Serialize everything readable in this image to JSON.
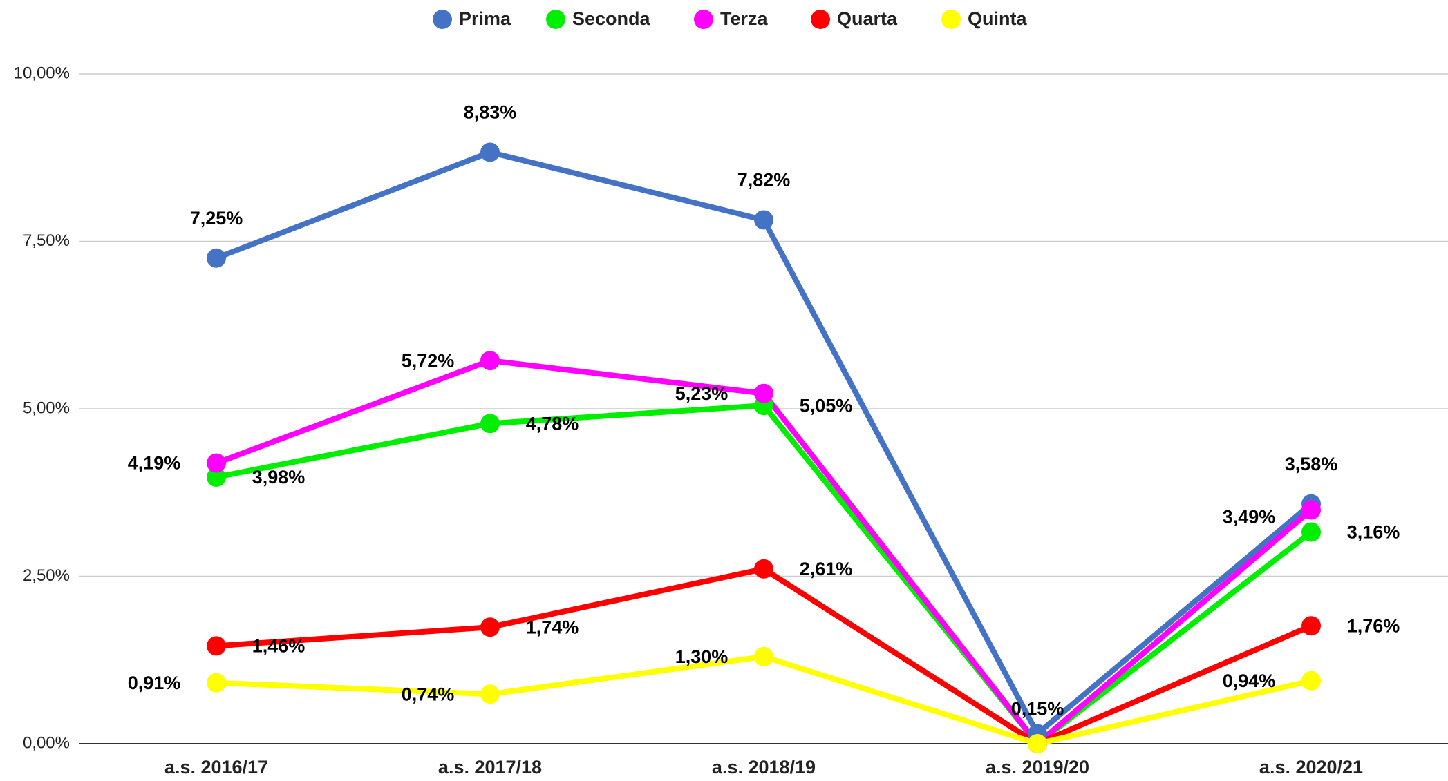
{
  "chart_data": {
    "type": "line",
    "categories": [
      "a.s. 2016/17",
      "a.s. 2017/18",
      "a.s. 2018/19",
      "a.s. 2019/20",
      "a.s. 2020/21"
    ],
    "series": [
      {
        "name": "Prima",
        "color": "#4472c4",
        "values": [
          7.25,
          8.83,
          7.82,
          0.15,
          3.58
        ],
        "value_labels": [
          "7,25%",
          "8,83%",
          "7,82%",
          "0,15%",
          "3,58%"
        ]
      },
      {
        "name": "Seconda",
        "color": "#00ee00",
        "values": [
          3.98,
          4.78,
          5.05,
          0,
          3.16
        ],
        "value_labels": [
          "3,98%",
          "4,78%",
          "5,05%",
          null,
          "3,16%"
        ]
      },
      {
        "name": "Terza",
        "color": "#ff00ff",
        "values": [
          4.19,
          5.72,
          5.23,
          0,
          3.49
        ],
        "value_labels": [
          "4,19%",
          "5,72%",
          "5,23%",
          null,
          "3,49%"
        ]
      },
      {
        "name": "Quarta",
        "color": "#ff0000",
        "values": [
          1.46,
          1.74,
          2.61,
          0,
          1.76
        ],
        "value_labels": [
          "1,46%",
          "1,74%",
          "2,61%",
          null,
          "1,76%"
        ]
      },
      {
        "name": "Quinta",
        "color": "#ffff00",
        "values": [
          0.91,
          0.74,
          1.3,
          0,
          0.94
        ],
        "value_labels": [
          "0,91%",
          "0,74%",
          "1,30%",
          null,
          "0,94%"
        ]
      }
    ],
    "ylim": [
      0,
      10
    ],
    "yticks": [
      {
        "value": 0,
        "label": "0,00%"
      },
      {
        "value": 2.5,
        "label": "2,50%"
      },
      {
        "value": 5,
        "label": "5,00%"
      },
      {
        "value": 7.5,
        "label": "7,50%"
      },
      {
        "value": 10,
        "label": "10,00%"
      }
    ],
    "grid": true,
    "legend": "top"
  }
}
